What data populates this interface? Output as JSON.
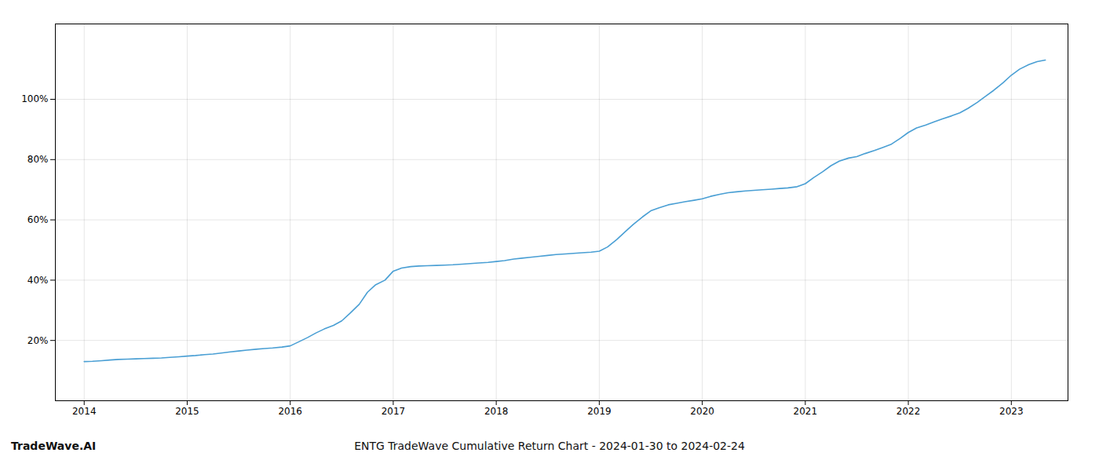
{
  "chart_data": {
    "type": "line",
    "title": "ENTG TradeWave Cumulative Return Chart - 2024-01-30 to 2024-02-24",
    "annotations": [
      "TradeWave.AI"
    ],
    "color": "#4a9fd4",
    "x": [
      2014.0,
      2014.08,
      2014.17,
      2014.25,
      2014.33,
      2014.42,
      2014.5,
      2014.58,
      2014.67,
      2014.75,
      2014.83,
      2014.92,
      2015.0,
      2015.08,
      2015.17,
      2015.25,
      2015.33,
      2015.42,
      2015.5,
      2015.58,
      2015.67,
      2015.75,
      2015.83,
      2015.92,
      2016.0,
      2016.08,
      2016.17,
      2016.25,
      2016.33,
      2016.42,
      2016.5,
      2016.58,
      2016.67,
      2016.75,
      2016.83,
      2016.92,
      2017.0,
      2017.08,
      2017.17,
      2017.25,
      2017.33,
      2017.42,
      2017.5,
      2017.58,
      2017.67,
      2017.75,
      2017.83,
      2017.92,
      2018.0,
      2018.08,
      2018.17,
      2018.25,
      2018.33,
      2018.42,
      2018.5,
      2018.58,
      2018.67,
      2018.75,
      2018.83,
      2018.92,
      2019.0,
      2019.08,
      2019.17,
      2019.25,
      2019.33,
      2019.42,
      2019.5,
      2019.58,
      2019.67,
      2019.75,
      2019.83,
      2019.92,
      2020.0,
      2020.08,
      2020.17,
      2020.25,
      2020.33,
      2020.42,
      2020.5,
      2020.58,
      2020.67,
      2020.75,
      2020.83,
      2020.92,
      2021.0,
      2021.08,
      2021.17,
      2021.25,
      2021.33,
      2021.42,
      2021.5,
      2021.58,
      2021.67,
      2021.75,
      2021.83,
      2021.92,
      2022.0,
      2022.08,
      2022.17,
      2022.25,
      2022.33,
      2022.42,
      2022.5,
      2022.58,
      2022.67,
      2022.75,
      2022.83,
      2022.92,
      2023.0,
      2023.08,
      2023.17,
      2023.25,
      2023.33
    ],
    "values": [
      13.0,
      13.1,
      13.3,
      13.5,
      13.7,
      13.8,
      13.9,
      14.0,
      14.1,
      14.2,
      14.4,
      14.6,
      14.8,
      15.0,
      15.3,
      15.5,
      15.8,
      16.2,
      16.5,
      16.8,
      17.1,
      17.3,
      17.5,
      17.8,
      18.2,
      19.5,
      21.0,
      22.5,
      23.8,
      25.0,
      26.5,
      29.0,
      32.0,
      36.0,
      38.5,
      40.0,
      43.0,
      44.0,
      44.5,
      44.7,
      44.8,
      44.9,
      45.0,
      45.1,
      45.3,
      45.5,
      45.7,
      45.9,
      46.2,
      46.5,
      47.0,
      47.3,
      47.6,
      47.9,
      48.2,
      48.5,
      48.7,
      48.9,
      49.1,
      49.3,
      49.6,
      51.0,
      53.5,
      56.0,
      58.5,
      61.0,
      63.0,
      64.0,
      65.0,
      65.5,
      66.0,
      66.5,
      67.0,
      67.8,
      68.5,
      69.0,
      69.3,
      69.6,
      69.8,
      70.0,
      70.2,
      70.4,
      70.6,
      71.0,
      72.0,
      74.0,
      76.0,
      78.0,
      79.5,
      80.5,
      81.0,
      82.0,
      83.0,
      84.0,
      85.0,
      87.0,
      89.0,
      90.5,
      91.5,
      92.5,
      93.5,
      94.5,
      95.5,
      97.0,
      99.0,
      101.0,
      103.0,
      105.5,
      108.0,
      110.0,
      111.5,
      112.5,
      113.0
    ],
    "xlim": [
      2013.72,
      2023.55
    ],
    "xticks": [
      2014,
      2015,
      2016,
      2017,
      2018,
      2019,
      2020,
      2021,
      2022,
      2023
    ],
    "ylim": [
      0,
      125
    ],
    "yticks": [
      {
        "value": 20,
        "label": "20%"
      },
      {
        "value": 40,
        "label": "40%"
      },
      {
        "value": 60,
        "label": "60%"
      },
      {
        "value": 80,
        "label": "80%"
      },
      {
        "value": 100,
        "label": "100%"
      }
    ],
    "grid": true
  }
}
